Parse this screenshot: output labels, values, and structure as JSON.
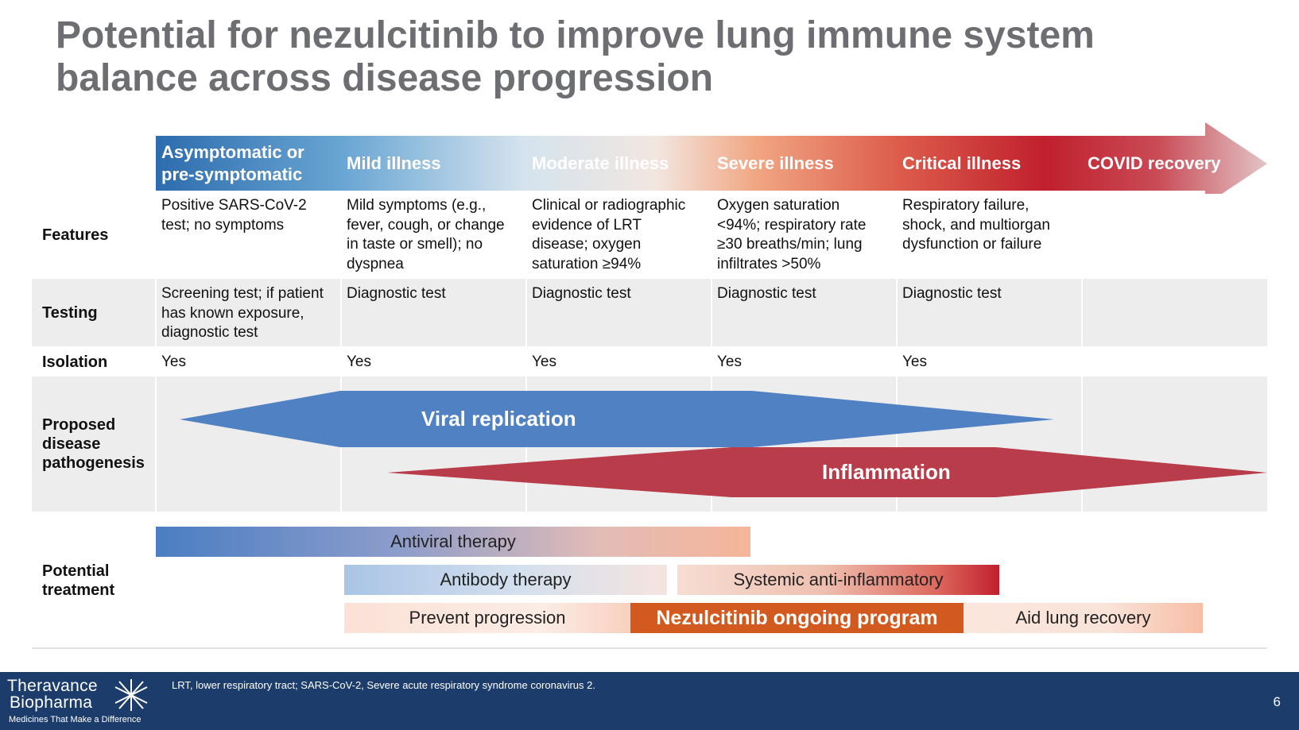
{
  "title": {
    "line1": "Potential for nezulcitinib to improve lung immune system",
    "line2": "balance across disease progression"
  },
  "stages": [
    {
      "line1": "Asymptomatic or",
      "line2": "pre-symptomatic"
    },
    {
      "line1": "Mild illness",
      "line2": ""
    },
    {
      "line1": "Moderate illness",
      "line2": ""
    },
    {
      "line1": "Severe illness",
      "line2": ""
    },
    {
      "line1": "Critical illness",
      "line2": ""
    },
    {
      "line1": "COVID recovery",
      "line2": ""
    }
  ],
  "rows": {
    "features": {
      "label": "Features",
      "cells": [
        [
          "Positive SARS-CoV-2",
          "test; no symptoms"
        ],
        [
          "Mild symptoms (e.g.,",
          "fever, cough, or change",
          "in taste or smell); no",
          "dyspnea"
        ],
        [
          "Clinical or radiographic",
          "evidence of LRT",
          "disease; oxygen",
          "saturation ≥94%"
        ],
        [
          "Oxygen saturation",
          "<94%; respiratory rate",
          "≥30 breaths/min; lung",
          "infiltrates >50%"
        ],
        [
          "Respiratory failure,",
          "shock, and multiorgan",
          "dysfunction or failure"
        ]
      ]
    },
    "testing": {
      "label": "Testing",
      "cells": [
        [
          "Screening test; if patient",
          "has known exposure,",
          "diagnostic test"
        ],
        [
          "Diagnostic test"
        ],
        [
          "Diagnostic test"
        ],
        [
          "Diagnostic test"
        ],
        [
          "Diagnostic test"
        ]
      ]
    },
    "isolation": {
      "label": "Isolation",
      "cells": [
        "Yes",
        "Yes",
        "Yes",
        "Yes",
        "Yes"
      ]
    },
    "pathogenesis": {
      "label_lines": [
        "Proposed",
        "disease",
        "pathogenesis"
      ],
      "viral": "Viral replication",
      "inflammation": "Inflammation"
    },
    "treatment": {
      "label_lines": [
        "Potential",
        "treatment"
      ],
      "antiviral": "Antiviral therapy",
      "antibody": "Antibody therapy",
      "systemic": "Systemic anti-inflammatory",
      "prevent": "Prevent progression",
      "nezulcitinib": "Nezulcitinib ongoing program",
      "aid": "Aid lung recovery"
    }
  },
  "footer": {
    "brand_line1": "Theravance",
    "brand_line2": "Biopharma",
    "tagline": "Medicines That Make a Difference",
    "footnote": "LRT, lower respiratory tract; SARS-CoV-2, Severe acute respiratory syndrome coronavirus 2.",
    "page_number": "6"
  },
  "colors": {
    "blue": "#4f81c3",
    "red": "#b83c4a",
    "nezulcitinib": "#d35a1e",
    "footer": "#1c3c6c",
    "title": "#6d6e71"
  }
}
